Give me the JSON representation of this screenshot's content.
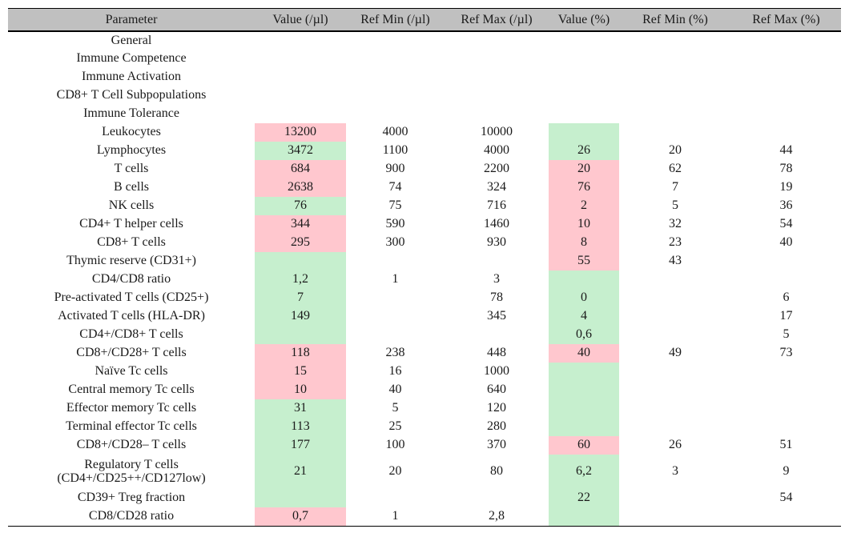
{
  "colors": {
    "good_fill": "#C6EFCE",
    "bad_fill": "#FFC7CE",
    "header_bg": "#C0C0C0",
    "rule": "#000000"
  },
  "table": {
    "columns": [
      {
        "label": "Parameter"
      },
      {
        "label": "Value (/µl)"
      },
      {
        "label": "Ref Min (/µl)"
      },
      {
        "label": "Ref Max (/µl)"
      },
      {
        "label": "Value (%)"
      },
      {
        "label": "Ref Min (%)"
      },
      {
        "label": "Ref Max (%)"
      }
    ],
    "rows": [
      {
        "parameter": "General",
        "value_ul": "",
        "value_ul_status": "none",
        "ref_min_ul": "",
        "ref_max_ul": "",
        "value_pct": "",
        "value_pct_status": "none",
        "ref_min_pct": "",
        "ref_max_pct": ""
      },
      {
        "parameter": "Immune Competence",
        "value_ul": "",
        "value_ul_status": "none",
        "ref_min_ul": "",
        "ref_max_ul": "",
        "value_pct": "",
        "value_pct_status": "none",
        "ref_min_pct": "",
        "ref_max_pct": ""
      },
      {
        "parameter": "Immune Activation",
        "value_ul": "",
        "value_ul_status": "none",
        "ref_min_ul": "",
        "ref_max_ul": "",
        "value_pct": "",
        "value_pct_status": "none",
        "ref_min_pct": "",
        "ref_max_pct": ""
      },
      {
        "parameter": "CD8+ T Cell Subpopulations",
        "value_ul": "",
        "value_ul_status": "none",
        "ref_min_ul": "",
        "ref_max_ul": "",
        "value_pct": "",
        "value_pct_status": "none",
        "ref_min_pct": "",
        "ref_max_pct": ""
      },
      {
        "parameter": "Immune Tolerance",
        "value_ul": "",
        "value_ul_status": "none",
        "ref_min_ul": "",
        "ref_max_ul": "",
        "value_pct": "",
        "value_pct_status": "none",
        "ref_min_pct": "",
        "ref_max_pct": ""
      },
      {
        "parameter": "Leukocytes",
        "value_ul": "13200",
        "value_ul_status": "bad",
        "ref_min_ul": "4000",
        "ref_max_ul": "10000",
        "value_pct": "",
        "value_pct_status": "good",
        "ref_min_pct": "",
        "ref_max_pct": ""
      },
      {
        "parameter": "Lymphocytes",
        "value_ul": "3472",
        "value_ul_status": "good",
        "ref_min_ul": "1100",
        "ref_max_ul": "4000",
        "value_pct": "26",
        "value_pct_status": "good",
        "ref_min_pct": "20",
        "ref_max_pct": "44"
      },
      {
        "parameter": "T cells",
        "value_ul": "684",
        "value_ul_status": "bad",
        "ref_min_ul": "900",
        "ref_max_ul": "2200",
        "value_pct": "20",
        "value_pct_status": "bad",
        "ref_min_pct": "62",
        "ref_max_pct": "78"
      },
      {
        "parameter": "B cells",
        "value_ul": "2638",
        "value_ul_status": "bad",
        "ref_min_ul": "74",
        "ref_max_ul": "324",
        "value_pct": "76",
        "value_pct_status": "bad",
        "ref_min_pct": "7",
        "ref_max_pct": "19"
      },
      {
        "parameter": "NK cells",
        "value_ul": "76",
        "value_ul_status": "good",
        "ref_min_ul": "75",
        "ref_max_ul": "716",
        "value_pct": "2",
        "value_pct_status": "bad",
        "ref_min_pct": "5",
        "ref_max_pct": "36"
      },
      {
        "parameter": "CD4+ T helper cells",
        "value_ul": "344",
        "value_ul_status": "bad",
        "ref_min_ul": "590",
        "ref_max_ul": "1460",
        "value_pct": "10",
        "value_pct_status": "bad",
        "ref_min_pct": "32",
        "ref_max_pct": "54"
      },
      {
        "parameter": "CD8+ T cells",
        "value_ul": "295",
        "value_ul_status": "bad",
        "ref_min_ul": "300",
        "ref_max_ul": "930",
        "value_pct": "8",
        "value_pct_status": "bad",
        "ref_min_pct": "23",
        "ref_max_pct": "40"
      },
      {
        "parameter": "Thymic reserve (CD31+)",
        "value_ul": "",
        "value_ul_status": "good",
        "ref_min_ul": "",
        "ref_max_ul": "",
        "value_pct": "55",
        "value_pct_status": "bad",
        "ref_min_pct": "43",
        "ref_max_pct": ""
      },
      {
        "parameter": "CD4/CD8 ratio",
        "value_ul": "1,2",
        "value_ul_status": "good",
        "ref_min_ul": "1",
        "ref_max_ul": "3",
        "value_pct": "",
        "value_pct_status": "good",
        "ref_min_pct": "",
        "ref_max_pct": ""
      },
      {
        "parameter": "Pre-activated T cells (CD25+)",
        "value_ul": "7",
        "value_ul_status": "good",
        "ref_min_ul": "",
        "ref_max_ul": "78",
        "value_pct": "0",
        "value_pct_status": "good",
        "ref_min_pct": "",
        "ref_max_pct": "6"
      },
      {
        "parameter": "Activated T cells (HLA-DR)",
        "value_ul": "149",
        "value_ul_status": "good",
        "ref_min_ul": "",
        "ref_max_ul": "345",
        "value_pct": "4",
        "value_pct_status": "good",
        "ref_min_pct": "",
        "ref_max_pct": "17"
      },
      {
        "parameter": "CD4+/CD8+ T cells",
        "value_ul": "",
        "value_ul_status": "good",
        "ref_min_ul": "",
        "ref_max_ul": "",
        "value_pct": "0,6",
        "value_pct_status": "good",
        "ref_min_pct": "",
        "ref_max_pct": "5"
      },
      {
        "parameter": "CD8+/CD28+ T cells",
        "value_ul": "118",
        "value_ul_status": "bad",
        "ref_min_ul": "238",
        "ref_max_ul": "448",
        "value_pct": "40",
        "value_pct_status": "bad",
        "ref_min_pct": "49",
        "ref_max_pct": "73"
      },
      {
        "parameter": "Naïve Tc cells",
        "value_ul": "15",
        "value_ul_status": "bad",
        "ref_min_ul": "16",
        "ref_max_ul": "1000",
        "value_pct": "",
        "value_pct_status": "good",
        "ref_min_pct": "",
        "ref_max_pct": ""
      },
      {
        "parameter": "Central memory Tc cells",
        "value_ul": "10",
        "value_ul_status": "bad",
        "ref_min_ul": "40",
        "ref_max_ul": "640",
        "value_pct": "",
        "value_pct_status": "good",
        "ref_min_pct": "",
        "ref_max_pct": ""
      },
      {
        "parameter": "Effector memory Tc cells",
        "value_ul": "31",
        "value_ul_status": "good",
        "ref_min_ul": "5",
        "ref_max_ul": "120",
        "value_pct": "",
        "value_pct_status": "good",
        "ref_min_pct": "",
        "ref_max_pct": ""
      },
      {
        "parameter": "Terminal effector Tc cells",
        "value_ul": "113",
        "value_ul_status": "good",
        "ref_min_ul": "25",
        "ref_max_ul": "280",
        "value_pct": "",
        "value_pct_status": "good",
        "ref_min_pct": "",
        "ref_max_pct": ""
      },
      {
        "parameter": "CD8+/CD28– T cells",
        "value_ul": "177",
        "value_ul_status": "good",
        "ref_min_ul": "100",
        "ref_max_ul": "370",
        "value_pct": "60",
        "value_pct_status": "bad",
        "ref_min_pct": "26",
        "ref_max_pct": "51"
      },
      {
        "parameter": "Regulatory T cells\n(CD4+/CD25++/CD127low)",
        "tall": true,
        "value_ul": "21",
        "value_ul_status": "good",
        "ref_min_ul": "20",
        "ref_max_ul": "80",
        "value_pct": "6,2",
        "value_pct_status": "good",
        "ref_min_pct": "3",
        "ref_max_pct": "9"
      },
      {
        "parameter": "CD39+ Treg fraction",
        "value_ul": "",
        "value_ul_status": "good",
        "ref_min_ul": "",
        "ref_max_ul": "",
        "value_pct": "22",
        "value_pct_status": "good",
        "ref_min_pct": "",
        "ref_max_pct": "54"
      },
      {
        "parameter": "CD8/CD28 ratio",
        "value_ul": "0,7",
        "value_ul_status": "bad",
        "ref_min_ul": "1",
        "ref_max_ul": "2,8",
        "value_pct": "",
        "value_pct_status": "good",
        "ref_min_pct": "",
        "ref_max_pct": ""
      }
    ]
  }
}
